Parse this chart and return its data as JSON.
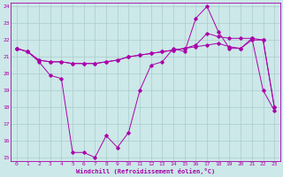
{
  "xlabel": "Windchill (Refroidissement éolien,°C)",
  "background_color": "#cce8e8",
  "grid_color": "#aacccc",
  "line_color": "#aa00aa",
  "xlim": [
    -0.5,
    23.5
  ],
  "ylim": [
    14.8,
    24.2
  ],
  "yticks": [
    15,
    16,
    17,
    18,
    19,
    20,
    21,
    22,
    23,
    24
  ],
  "xticks": [
    0,
    1,
    2,
    3,
    4,
    5,
    6,
    7,
    8,
    9,
    10,
    11,
    12,
    13,
    14,
    15,
    16,
    17,
    18,
    19,
    20,
    21,
    22,
    23
  ],
  "series1_x": [
    0,
    1,
    2,
    3,
    4,
    5,
    6,
    7,
    8,
    9,
    10,
    11,
    12,
    13,
    14,
    15,
    16,
    17,
    18,
    19,
    20,
    21,
    22,
    23
  ],
  "series1_y": [
    21.5,
    21.3,
    20.7,
    19.9,
    19.7,
    15.3,
    15.3,
    15.0,
    16.3,
    15.6,
    16.5,
    19.0,
    20.5,
    20.7,
    21.5,
    21.3,
    23.3,
    24.0,
    22.5,
    21.5,
    21.5,
    22.1,
    19.0,
    17.8
  ],
  "series2_x": [
    0,
    1,
    2,
    3,
    4,
    5,
    6,
    7,
    8,
    9,
    10,
    11,
    12,
    13,
    14,
    15,
    16,
    17,
    18,
    19,
    20,
    21,
    22,
    23
  ],
  "series2_y": [
    21.5,
    21.3,
    20.8,
    20.7,
    20.7,
    20.6,
    20.6,
    20.6,
    20.7,
    20.8,
    21.0,
    21.1,
    21.2,
    21.3,
    21.4,
    21.5,
    21.7,
    22.4,
    22.2,
    22.1,
    22.1,
    22.1,
    22.0,
    18.0
  ],
  "series3_x": [
    0,
    1,
    2,
    3,
    4,
    5,
    6,
    7,
    8,
    9,
    10,
    11,
    12,
    13,
    14,
    15,
    16,
    17,
    18,
    19,
    20,
    21,
    22,
    23
  ],
  "series3_y": [
    21.5,
    21.3,
    20.8,
    20.7,
    20.7,
    20.6,
    20.6,
    20.6,
    20.7,
    20.8,
    21.0,
    21.1,
    21.2,
    21.3,
    21.4,
    21.5,
    21.6,
    21.7,
    21.8,
    21.6,
    21.5,
    22.0,
    22.0,
    18.0
  ]
}
